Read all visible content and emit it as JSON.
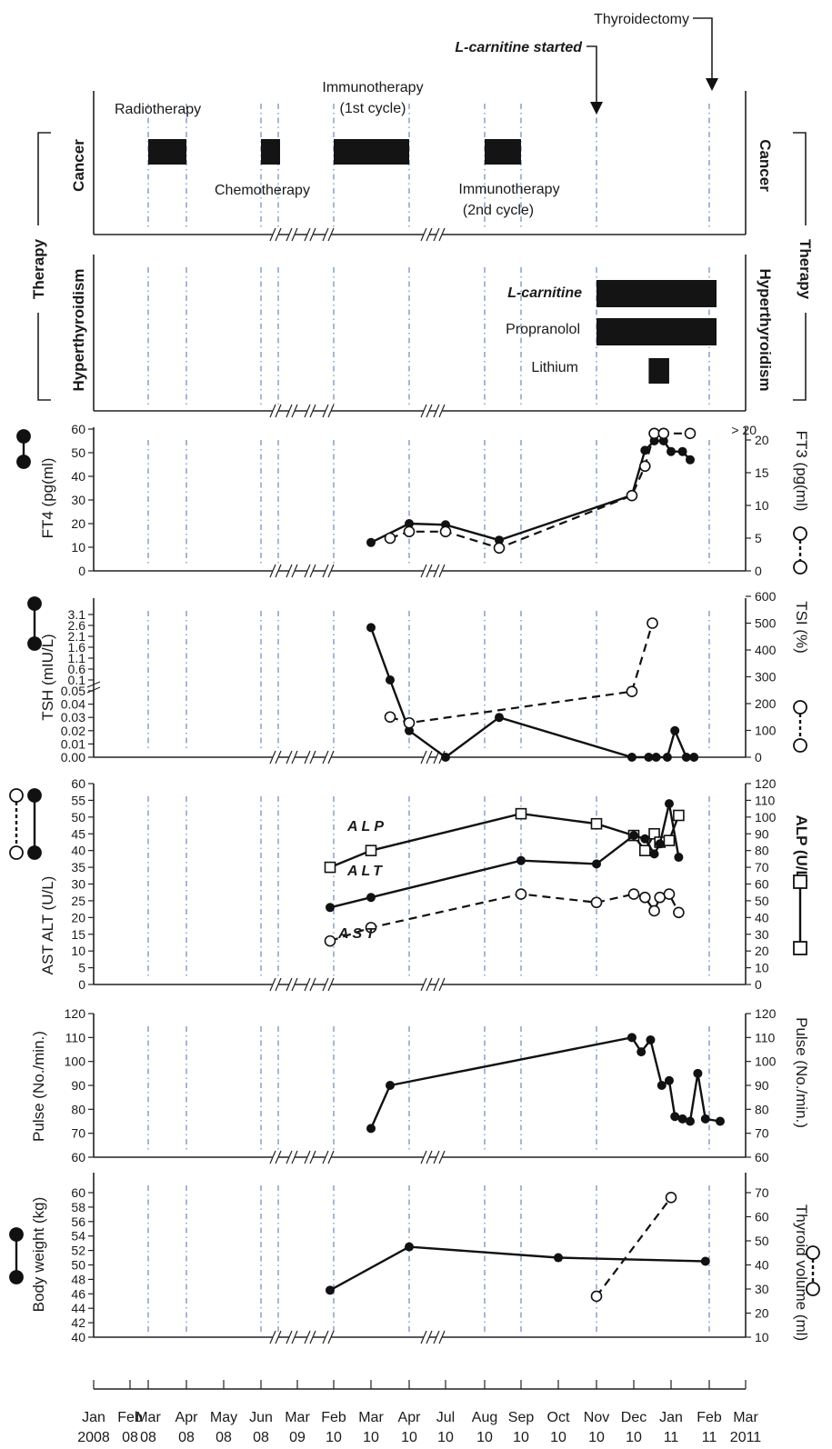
{
  "x_axis": {
    "months": [
      "Jan",
      "Feb",
      "Mar",
      "Apr",
      "May",
      "Jun",
      "Mar",
      "Feb",
      "Mar",
      "Apr",
      "Jul",
      "Aug",
      "Sep",
      "Oct",
      "Nov",
      "Dec",
      "Jan",
      "Feb",
      "Mar"
    ],
    "years": [
      "2008",
      "08",
      "08",
      "08",
      "08",
      "08",
      "09",
      "10",
      "10",
      "10",
      "10",
      "10",
      "10",
      "10",
      "10",
      "10",
      "11",
      "11",
      "2011"
    ]
  },
  "events": {
    "l_carnitine_started": "L-carnitine started",
    "thyroidectomy": "Thyroidectomy"
  },
  "therapy_label": "Therapy",
  "cancer_panel": {
    "label": "Cancer",
    "radiotherapy": "Radiotherapy",
    "chemotherapy": "Chemotherapy",
    "immuno1_line1": "Immunotherapy",
    "immuno1_line2": "(1st cycle)",
    "immuno2_line1": "Immunotherapy",
    "immuno2_line2": "(2nd cycle)"
  },
  "hyper_panel": {
    "label": "Hyperthyroidism",
    "l_carnitine": "L-carnitine",
    "propranolol": "Propranolol",
    "lithium": "Lithium"
  },
  "chart_data": [
    {
      "type": "timeline",
      "title": "Therapy – Cancer",
      "bars": [
        {
          "name": "Radiotherapy",
          "start": "Mar 08",
          "end": "Apr 08"
        },
        {
          "name": "Chemotherapy",
          "start": "Jun 08",
          "end": "Jun 08"
        },
        {
          "name": "Immunotherapy (1st cycle)",
          "start": "Feb 10",
          "end": "Apr 10"
        },
        {
          "name": "Immunotherapy (2nd cycle)",
          "start": "Aug 10",
          "end": "Sep 10"
        }
      ]
    },
    {
      "type": "timeline",
      "title": "Therapy – Hyperthyroidism",
      "bars": [
        {
          "name": "L-carnitine",
          "start": "Nov 10",
          "end": "Feb 11"
        },
        {
          "name": "Propranolol",
          "start": "Nov 10",
          "end": "Feb 11"
        },
        {
          "name": "Lithium",
          "start": "Dec 10",
          "end": "Jan 11"
        }
      ]
    },
    {
      "type": "line",
      "ylabel": "FT4 (pg(ml)",
      "ylabel_right": "FT3 (pg(ml)",
      "ylim": [
        0,
        60
      ],
      "ylim_right": [
        0,
        20
      ],
      "yticks": [
        "0",
        "10",
        "20",
        "30",
        "40",
        "50",
        "60"
      ],
      "yticks_right": [
        "0",
        "5",
        "10",
        "15",
        "20"
      ],
      "right_top_label": "> 20",
      "series": [
        {
          "name": "FT4",
          "axis": "left",
          "style": "solid",
          "points": [
            [
              8.0,
              12
            ],
            [
              9.0,
              20
            ],
            [
              10.0,
              19.5
            ],
            [
              11.4,
              13
            ],
            [
              14.95,
              32
            ],
            [
              15.3,
              51
            ],
            [
              15.55,
              55
            ],
            [
              15.8,
              55
            ],
            [
              16.0,
              50.5
            ],
            [
              16.3,
              50.5
            ],
            [
              16.5,
              47
            ]
          ]
        },
        {
          "name": "FT3",
          "axis": "right",
          "style": "dashed",
          "points": [
            [
              8.5,
              5
            ],
            [
              9.0,
              6
            ],
            [
              10.0,
              6
            ],
            [
              11.4,
              3.5
            ],
            [
              14.95,
              11.5
            ],
            [
              15.3,
              16
            ],
            [
              15.55,
              22
            ],
            [
              15.8,
              22
            ],
            [
              16.5,
              22
            ]
          ]
        }
      ]
    },
    {
      "type": "line",
      "ylabel": "TSH (mIU/L)",
      "ylabel_right": "TSI (%)",
      "yticks_low": [
        "0.00",
        "0.01",
        "0.02",
        "0.03",
        "0.04",
        "0.05"
      ],
      "yticks_high": [
        "0.1",
        "0.6",
        "1.1",
        "1.6",
        "2.1",
        "2.6",
        "3.1"
      ],
      "yticks_right": [
        "0",
        "100",
        "200",
        "300",
        "400",
        "500",
        "600"
      ],
      "ylim_right": [
        0,
        600
      ],
      "series": [
        {
          "name": "TSH",
          "axis": "left",
          "style": "solid",
          "points": [
            [
              8.0,
              2.5
            ],
            [
              8.5,
              0.1
            ],
            [
              9.0,
              0.02
            ],
            [
              10.0,
              0.0
            ],
            [
              11.4,
              0.03
            ],
            [
              14.95,
              0.0
            ],
            [
              15.4,
              0.0
            ],
            [
              15.6,
              0.0
            ],
            [
              15.9,
              0.0
            ],
            [
              16.1,
              0.02
            ],
            [
              16.4,
              0.0
            ],
            [
              16.6,
              0.0
            ]
          ]
        },
        {
          "name": "TSI",
          "axis": "right",
          "style": "dashed",
          "points": [
            [
              8.5,
              150
            ],
            [
              9.0,
              128
            ],
            [
              14.95,
              245
            ],
            [
              15.5,
              500
            ]
          ]
        }
      ]
    },
    {
      "type": "line",
      "ylabel": "AST ALT (U/L)",
      "ylabel_right": "ALP (U/L)",
      "ylim": [
        0,
        60
      ],
      "ylim_right": [
        0,
        120
      ],
      "yticks": [
        "0",
        "5",
        "10",
        "15",
        "20",
        "25",
        "30",
        "35",
        "40",
        "45",
        "50",
        "55",
        "60"
      ],
      "yticks_right": [
        "0",
        "10",
        "20",
        "30",
        "40",
        "50",
        "60",
        "70",
        "80",
        "90",
        "100",
        "110",
        "120"
      ],
      "annotations": [
        "ALP",
        "ALT",
        "AST"
      ],
      "series": [
        {
          "name": "ALP",
          "axis": "right",
          "style": "solid",
          "marker": "square",
          "points": [
            [
              6.9,
              70
            ],
            [
              8.0,
              80
            ],
            [
              12.0,
              102
            ],
            [
              14.0,
              96
            ],
            [
              15.0,
              89
            ],
            [
              15.3,
              80
            ],
            [
              15.55,
              90
            ],
            [
              15.7,
              85
            ],
            [
              15.95,
              86
            ],
            [
              16.2,
              101
            ]
          ]
        },
        {
          "name": "ALT",
          "axis": "left",
          "style": "solid",
          "points": [
            [
              6.9,
              23
            ],
            [
              8.0,
              26
            ],
            [
              12.0,
              37
            ],
            [
              14.0,
              36
            ],
            [
              15.0,
              44.5
            ],
            [
              15.3,
              43.5
            ],
            [
              15.55,
              39
            ],
            [
              15.7,
              42
            ],
            [
              15.95,
              54
            ],
            [
              16.2,
              38
            ]
          ]
        },
        {
          "name": "AST",
          "axis": "left",
          "style": "dashed",
          "points": [
            [
              6.9,
              13
            ],
            [
              8.0,
              17
            ],
            [
              12.0,
              27
            ],
            [
              14.0,
              24.5
            ],
            [
              15.0,
              27
            ],
            [
              15.3,
              26
            ],
            [
              15.55,
              22
            ],
            [
              15.7,
              26
            ],
            [
              15.95,
              27
            ],
            [
              16.2,
              21.5
            ]
          ]
        }
      ]
    },
    {
      "type": "line",
      "ylabel": "Pulse (No./min.)",
      "ylabel_right": "Pulse (No./min.)",
      "ylim": [
        60,
        120
      ],
      "yticks": [
        "60",
        "70",
        "80",
        "90",
        "100",
        "110",
        "120"
      ],
      "series": [
        {
          "name": "Pulse",
          "axis": "left",
          "style": "solid",
          "points": [
            [
              8.0,
              72
            ],
            [
              8.5,
              90
            ],
            [
              14.95,
              110
            ],
            [
              15.2,
              104
            ],
            [
              15.45,
              109
            ],
            [
              15.75,
              90
            ],
            [
              15.95,
              92
            ],
            [
              16.1,
              77
            ],
            [
              16.3,
              76
            ],
            [
              16.5,
              75
            ],
            [
              16.7,
              95
            ],
            [
              16.9,
              76
            ],
            [
              17.3,
              75
            ]
          ]
        }
      ]
    },
    {
      "type": "line",
      "ylabel": "Body weight (kg)",
      "ylabel_right": "Thyroid volume (ml)",
      "ylim": [
        40,
        60
      ],
      "ylim_right": [
        10,
        70
      ],
      "yticks": [
        "40",
        "42",
        "44",
        "46",
        "48",
        "50",
        "52",
        "54",
        "56",
        "58",
        "60"
      ],
      "yticks_right": [
        "10",
        "20",
        "30",
        "40",
        "50",
        "60",
        "70"
      ],
      "series": [
        {
          "name": "Body weight",
          "axis": "left",
          "style": "solid",
          "points": [
            [
              6.9,
              46.5
            ],
            [
              9.0,
              52.5
            ],
            [
              13.0,
              51
            ],
            [
              16.9,
              50.5
            ]
          ]
        },
        {
          "name": "Thyroid volume",
          "axis": "right",
          "style": "dashed",
          "points": [
            [
              14.0,
              27
            ],
            [
              16.0,
              68
            ]
          ]
        }
      ]
    }
  ]
}
